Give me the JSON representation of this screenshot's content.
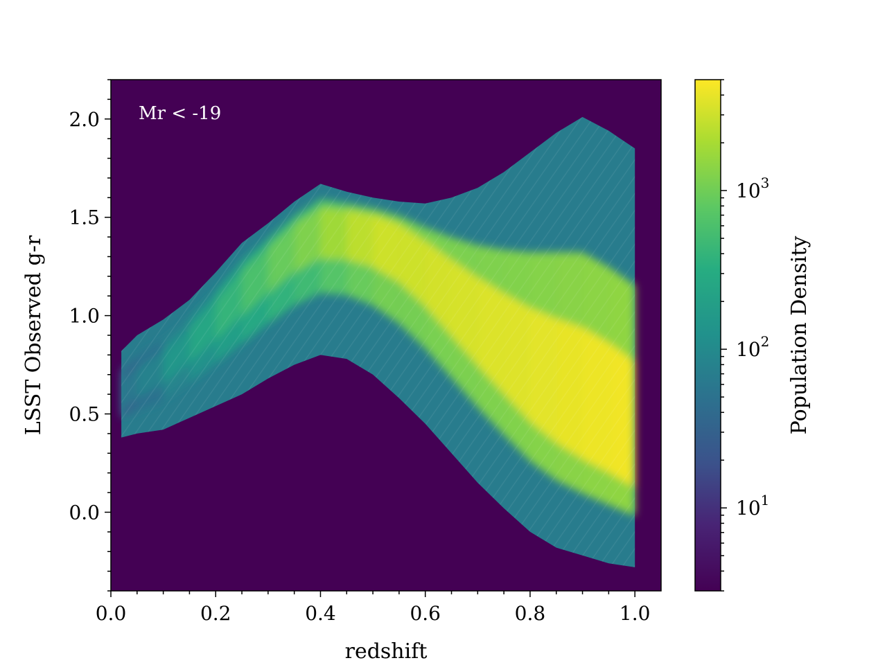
{
  "chart_data": {
    "type": "heatmap",
    "title": "",
    "xlabel": "redshift",
    "ylabel": "LSST Observed g-r",
    "xlim": [
      0.0,
      1.05
    ],
    "ylim": [
      -0.4,
      2.2
    ],
    "xticks": [
      "0.0",
      "0.2",
      "0.4",
      "0.6",
      "0.8",
      "1.0"
    ],
    "yticks": [
      "0.0",
      "0.5",
      "1.0",
      "1.5",
      "2.0"
    ],
    "annotation": "Mr < -19",
    "background_color": "#440154",
    "colormap": "viridis",
    "colorbar": {
      "label": "Population Density",
      "scale": "log",
      "range": [
        3,
        5000
      ],
      "tick_values": [
        10,
        100,
        1000
      ],
      "tick_base": "10",
      "tick_exponents": [
        "1",
        "2",
        "3"
      ]
    },
    "density_envelope": {
      "x": [
        0.02,
        0.05,
        0.1,
        0.15,
        0.2,
        0.25,
        0.3,
        0.35,
        0.4,
        0.45,
        0.5,
        0.55,
        0.6,
        0.65,
        0.7,
        0.75,
        0.8,
        0.85,
        0.9,
        0.95,
        1.0
      ],
      "upper": [
        0.82,
        0.9,
        0.98,
        1.08,
        1.22,
        1.37,
        1.47,
        1.58,
        1.67,
        1.63,
        1.6,
        1.58,
        1.57,
        1.6,
        1.65,
        1.73,
        1.83,
        1.93,
        2.01,
        1.94,
        1.85
      ],
      "ridge": [
        0.6,
        0.66,
        0.75,
        0.88,
        1.02,
        1.17,
        1.3,
        1.42,
        1.5,
        1.5,
        1.48,
        1.42,
        1.3,
        1.15,
        1.0,
        0.85,
        0.7,
        0.58,
        0.48,
        0.4,
        0.3
      ],
      "lower": [
        0.38,
        0.4,
        0.42,
        0.48,
        0.54,
        0.6,
        0.68,
        0.75,
        0.8,
        0.78,
        0.7,
        0.58,
        0.45,
        0.3,
        0.15,
        0.02,
        -0.1,
        -0.18,
        -0.22,
        -0.26,
        -0.28
      ],
      "ridge_density": [
        60,
        80,
        150,
        250,
        400,
        600,
        900,
        1200,
        1800,
        2500,
        3000,
        3000,
        3200,
        3300,
        3500,
        3600,
        3800,
        4000,
        4200,
        4400,
        4600
      ]
    }
  }
}
